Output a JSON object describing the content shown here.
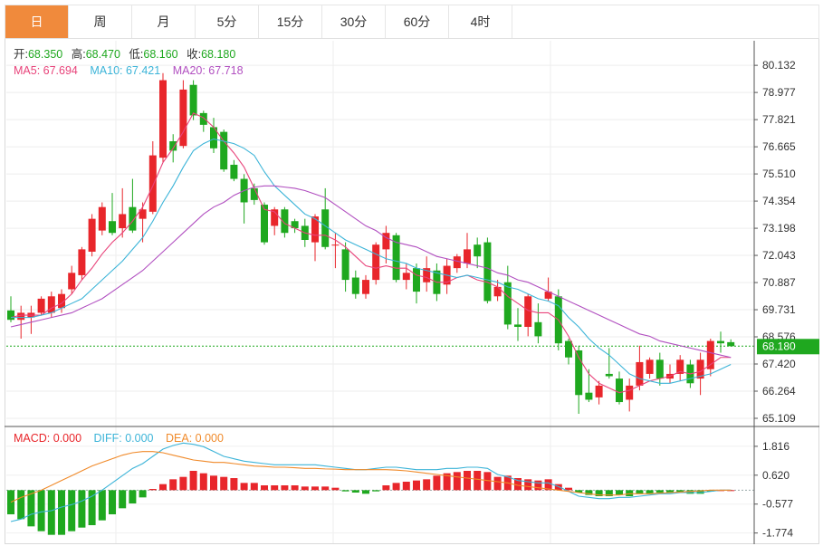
{
  "tabs": [
    {
      "label": "日",
      "active": true
    },
    {
      "label": "周",
      "active": false
    },
    {
      "label": "月",
      "active": false
    },
    {
      "label": "5分",
      "active": false
    },
    {
      "label": "15分",
      "active": false
    },
    {
      "label": "30分",
      "active": false
    },
    {
      "label": "60分",
      "active": false
    },
    {
      "label": "4时",
      "active": false
    }
  ],
  "ohlc_legend": {
    "open_label": "开:",
    "open": "68.350",
    "high_label": "高:",
    "high": "68.470",
    "low_label": "低:",
    "low": "68.160",
    "close_label": "收:",
    "close": "68.180"
  },
  "ma_legend": {
    "ma5": "MA5: 67.694",
    "ma10": "MA10: 67.421",
    "ma20": "MA20: 67.718"
  },
  "macd_legend": {
    "macd": "MACD: 0.000",
    "diff": "DIFF: 0.000",
    "dea": "DEA: 0.000"
  },
  "last_price_tag": "68.180",
  "colors": {
    "up": "#e8262b",
    "down": "#1fa81f",
    "ma5": "#e8437a",
    "ma10": "#3cb4d8",
    "ma20": "#b14fc0",
    "diff": "#3cb4d8",
    "dea": "#f08a2a",
    "tab_active": "#f08a3c",
    "last_price": "#1fa81f"
  },
  "chart_data": [
    {
      "type": "candlestick",
      "ylim": [
        64.8,
        80.6
      ],
      "yticks": [
        "80.132",
        "78.977",
        "77.821",
        "76.665",
        "75.510",
        "74.354",
        "73.198",
        "72.043",
        "70.887",
        "69.731",
        "68.576",
        "67.420",
        "66.264",
        "65.109"
      ],
      "last_price": 68.18,
      "candles": [
        [
          69.7,
          69.3,
          70.3,
          69.2
        ],
        [
          69.3,
          69.6,
          69.9,
          68.5
        ],
        [
          69.4,
          69.6,
          69.9,
          68.7
        ],
        [
          69.6,
          70.2,
          70.3,
          69.5
        ],
        [
          69.6,
          70.3,
          70.5,
          69.4
        ],
        [
          69.8,
          70.4,
          70.6,
          69.6
        ],
        [
          70.6,
          71.3,
          71.6,
          70.4
        ],
        [
          71.2,
          72.3,
          72.4,
          71.0
        ],
        [
          72.2,
          73.6,
          73.8,
          72.0
        ],
        [
          73.1,
          74.1,
          74.3,
          72.9
        ],
        [
          73.5,
          73.0,
          74.7,
          72.9
        ],
        [
          73.2,
          73.8,
          74.9,
          72.8
        ],
        [
          74.1,
          73.1,
          75.3,
          73.0
        ],
        [
          73.6,
          74.0,
          74.3,
          72.6
        ],
        [
          73.9,
          76.3,
          76.9,
          73.8
        ],
        [
          76.2,
          79.5,
          79.8,
          76.0
        ],
        [
          76.9,
          76.5,
          77.2,
          76.0
        ],
        [
          76.7,
          79.1,
          79.5,
          76.6
        ],
        [
          79.3,
          78.0,
          79.5,
          77.8
        ],
        [
          78.1,
          77.6,
          78.2,
          77.3
        ],
        [
          77.5,
          76.6,
          77.9,
          76.4
        ],
        [
          77.3,
          75.7,
          77.4,
          75.6
        ],
        [
          75.9,
          75.3,
          76.1,
          75.2
        ],
        [
          75.3,
          74.3,
          75.5,
          73.4
        ],
        [
          74.9,
          74.4,
          75.1,
          74.2
        ],
        [
          74.2,
          72.6,
          74.3,
          72.5
        ],
        [
          73.3,
          74.0,
          74.1,
          72.9
        ],
        [
          74.0,
          73.0,
          74.1,
          72.8
        ],
        [
          73.5,
          73.2,
          73.6,
          73.0
        ],
        [
          73.3,
          72.7,
          73.6,
          72.4
        ],
        [
          72.6,
          73.7,
          73.8,
          71.8
        ],
        [
          74.0,
          72.4,
          74.9,
          72.3
        ],
        [
          72.5,
          72.5,
          73.0,
          71.5
        ],
        [
          72.3,
          71.0,
          72.6,
          70.5
        ],
        [
          71.1,
          70.4,
          71.4,
          70.2
        ],
        [
          70.4,
          71.0,
          71.2,
          70.2
        ],
        [
          71.0,
          72.5,
          72.6,
          70.8
        ],
        [
          72.3,
          73.0,
          73.3,
          71.7
        ],
        [
          72.9,
          71.0,
          73.0,
          70.9
        ],
        [
          71.0,
          71.3,
          71.7,
          70.6
        ],
        [
          71.5,
          70.5,
          71.7,
          70.0
        ],
        [
          70.9,
          71.5,
          72.0,
          70.5
        ],
        [
          71.4,
          70.4,
          71.7,
          70.1
        ],
        [
          70.8,
          71.6,
          71.9,
          70.4
        ],
        [
          71.5,
          72.0,
          72.1,
          71.3
        ],
        [
          71.7,
          72.3,
          73.0,
          71.5
        ],
        [
          72.5,
          72.0,
          72.8,
          71.5
        ],
        [
          72.6,
          70.1,
          72.8,
          70.0
        ],
        [
          70.3,
          70.7,
          71.0,
          70.1
        ],
        [
          70.9,
          69.1,
          71.6,
          68.9
        ],
        [
          69.1,
          69.0,
          69.8,
          68.4
        ],
        [
          69.0,
          70.3,
          70.4,
          68.6
        ],
        [
          69.2,
          68.6,
          70.0,
          68.3
        ],
        [
          70.2,
          70.5,
          71.1,
          70.1
        ],
        [
          70.3,
          68.3,
          70.6,
          68.0
        ],
        [
          68.4,
          67.7,
          68.5,
          67.4
        ],
        [
          68.0,
          66.1,
          68.2,
          65.3
        ],
        [
          66.2,
          65.9,
          67.2,
          65.8
        ],
        [
          66.0,
          66.5,
          66.7,
          65.7
        ],
        [
          67.0,
          66.9,
          68.1,
          66.8
        ],
        [
          66.8,
          65.8,
          67.1,
          65.7
        ],
        [
          65.9,
          66.5,
          66.8,
          65.4
        ],
        [
          66.5,
          67.5,
          68.2,
          66.3
        ],
        [
          67.0,
          67.6,
          67.7,
          66.8
        ],
        [
          67.6,
          66.8,
          67.9,
          66.5
        ],
        [
          66.8,
          67.0,
          67.4,
          66.6
        ],
        [
          67.0,
          67.6,
          67.8,
          66.7
        ],
        [
          67.4,
          66.6,
          67.6,
          66.4
        ],
        [
          66.8,
          67.6,
          67.9,
          66.1
        ],
        [
          67.2,
          68.4,
          68.5,
          66.9
        ],
        [
          68.4,
          68.3,
          68.8,
          67.9
        ],
        [
          68.35,
          68.18,
          68.47,
          68.16
        ]
      ],
      "ma_series": [
        {
          "name": "MA5",
          "values": [
            69.4,
            69.5,
            69.5,
            69.5,
            69.8,
            70.0,
            70.4,
            71.0,
            71.5,
            72.1,
            72.6,
            73.0,
            73.5,
            74.1,
            75.0,
            76.0,
            76.6,
            77.3,
            78.1,
            77.9,
            77.5,
            76.9,
            76.4,
            75.8,
            74.9,
            74.0,
            73.9,
            73.4,
            73.2,
            73.0,
            72.9,
            72.9,
            72.7,
            72.4,
            72.0,
            71.6,
            71.5,
            71.6,
            71.5,
            71.5,
            71.2,
            71.1,
            70.9,
            70.9,
            71.1,
            71.2,
            71.0,
            70.9,
            70.7,
            70.3,
            70.0,
            69.7,
            69.6,
            69.6,
            69.3,
            68.6,
            67.7,
            67.0,
            66.6,
            66.4,
            66.2,
            66.3,
            66.5,
            66.7,
            66.8,
            66.9,
            67.1,
            67.0,
            67.1,
            67.4,
            67.7,
            67.7
          ]
        },
        {
          "name": "MA10",
          "values": [
            69.4,
            69.4,
            69.4,
            69.5,
            69.6,
            69.8,
            70.0,
            70.2,
            70.6,
            71.0,
            71.4,
            71.8,
            72.3,
            72.8,
            73.5,
            74.3,
            75.0,
            75.8,
            76.5,
            76.8,
            77.0,
            76.9,
            76.8,
            76.6,
            76.3,
            75.6,
            75.0,
            74.6,
            74.2,
            73.8,
            73.6,
            73.3,
            73.0,
            72.7,
            72.5,
            72.3,
            72.1,
            71.9,
            71.8,
            71.7,
            71.5,
            71.4,
            71.3,
            71.2,
            71.1,
            71.2,
            71.1,
            71.0,
            70.9,
            70.7,
            70.6,
            70.4,
            70.2,
            70.1,
            69.9,
            69.4,
            69.0,
            68.5,
            68.1,
            67.8,
            67.4,
            67.0,
            66.8,
            66.7,
            66.6,
            66.6,
            66.7,
            66.8,
            66.9,
            67.0,
            67.2,
            67.4
          ]
        },
        {
          "name": "MA20",
          "values": [
            69.0,
            69.1,
            69.2,
            69.3,
            69.4,
            69.5,
            69.6,
            69.8,
            70.0,
            70.2,
            70.5,
            70.8,
            71.1,
            71.4,
            71.8,
            72.2,
            72.6,
            73.0,
            73.4,
            73.8,
            74.1,
            74.3,
            74.6,
            74.8,
            74.95,
            75.0,
            75.0,
            74.95,
            74.9,
            74.8,
            74.65,
            74.5,
            74.2,
            73.9,
            73.6,
            73.3,
            73.1,
            72.8,
            72.6,
            72.5,
            72.4,
            72.2,
            72.0,
            71.9,
            71.8,
            71.7,
            71.6,
            71.5,
            71.3,
            71.2,
            71.0,
            70.9,
            70.7,
            70.5,
            70.3,
            70.1,
            69.9,
            69.7,
            69.5,
            69.3,
            69.1,
            68.9,
            68.7,
            68.6,
            68.4,
            68.3,
            68.2,
            68.1,
            68.0,
            67.9,
            67.8,
            67.7
          ]
        }
      ]
    },
    {
      "type": "bar",
      "name": "MACD",
      "ylim": [
        -2.2,
        2.6
      ],
      "yticks": [
        "1.816",
        "0.620",
        "-0.577",
        "-1.774"
      ],
      "values": [
        -1.0,
        -1.2,
        -1.5,
        -1.7,
        -1.85,
        -1.85,
        -1.7,
        -1.55,
        -1.45,
        -1.25,
        -1.0,
        -0.75,
        -0.55,
        -0.3,
        0.05,
        0.25,
        0.45,
        0.55,
        0.8,
        0.7,
        0.6,
        0.55,
        0.5,
        0.3,
        0.3,
        0.2,
        0.2,
        0.2,
        0.2,
        0.15,
        0.15,
        0.15,
        0.1,
        -0.05,
        -0.1,
        -0.15,
        -0.05,
        0.2,
        0.3,
        0.35,
        0.4,
        0.45,
        0.6,
        0.7,
        0.75,
        0.8,
        0.8,
        0.75,
        0.55,
        0.6,
        0.5,
        0.45,
        0.4,
        0.45,
        0.25,
        0.1,
        -0.1,
        -0.2,
        -0.25,
        -0.25,
        -0.2,
        -0.25,
        -0.15,
        -0.15,
        -0.1,
        -0.1,
        -0.1,
        -0.15,
        -0.15,
        -0.05,
        0.0,
        0.0
      ],
      "diff": [
        -1.3,
        -1.2,
        -1.0,
        -0.9,
        -0.85,
        -0.7,
        -0.6,
        -0.45,
        -0.25,
        0.0,
        0.3,
        0.6,
        0.9,
        1.1,
        1.4,
        1.7,
        1.85,
        1.95,
        1.9,
        1.8,
        1.6,
        1.4,
        1.3,
        1.2,
        1.15,
        1.1,
        1.05,
        1.05,
        1.05,
        1.05,
        1.05,
        1.0,
        0.95,
        0.9,
        0.85,
        0.85,
        0.9,
        0.95,
        0.95,
        0.9,
        0.85,
        0.85,
        0.85,
        0.9,
        0.9,
        0.95,
        0.95,
        0.9,
        0.65,
        0.55,
        0.4,
        0.35,
        0.3,
        0.3,
        0.15,
        -0.05,
        -0.25,
        -0.3,
        -0.35,
        -0.35,
        -0.3,
        -0.3,
        -0.25,
        -0.2,
        -0.15,
        -0.15,
        -0.1,
        -0.1,
        -0.1,
        -0.05,
        0.0,
        0.0
      ],
      "dea": [
        -0.5,
        -0.3,
        -0.15,
        0.0,
        0.2,
        0.4,
        0.6,
        0.8,
        1.0,
        1.15,
        1.3,
        1.45,
        1.55,
        1.6,
        1.6,
        1.55,
        1.45,
        1.35,
        1.25,
        1.2,
        1.15,
        1.15,
        1.1,
        1.05,
        1.0,
        0.98,
        0.95,
        0.95,
        0.93,
        0.9,
        0.9,
        0.88,
        0.87,
        0.85,
        0.85,
        0.85,
        0.85,
        0.85,
        0.83,
        0.8,
        0.75,
        0.7,
        0.65,
        0.6,
        0.55,
        0.5,
        0.45,
        0.4,
        0.35,
        0.3,
        0.2,
        0.15,
        0.1,
        0.05,
        0.0,
        -0.05,
        -0.1,
        -0.15,
        -0.2,
        -0.2,
        -0.2,
        -0.15,
        -0.15,
        -0.15,
        -0.12,
        -0.1,
        -0.08,
        -0.05,
        -0.03,
        0.0,
        0.0,
        0.0
      ]
    }
  ]
}
